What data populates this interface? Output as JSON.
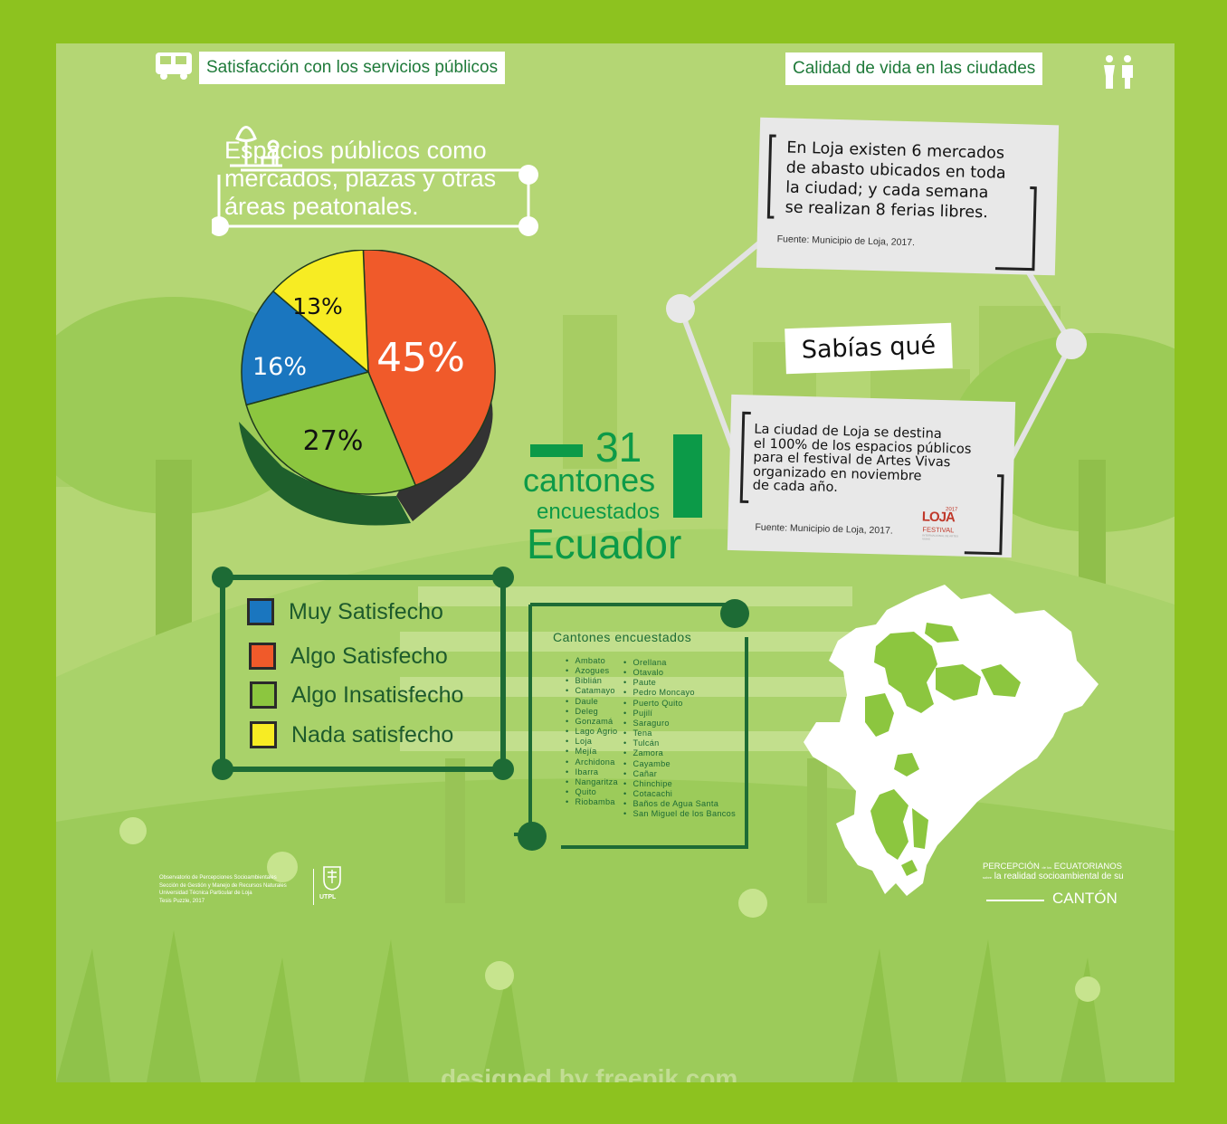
{
  "headers": {
    "left": "Satisfacción con los servicios públicos",
    "right": "Calidad de vida en las ciudades"
  },
  "question": {
    "text": "Espacios públicos como mercados, plazas y otras áreas peatonales."
  },
  "chart_data": {
    "type": "pie",
    "categories": [
      "Algo Satisfecho",
      "Algo Insatisfecho",
      "Muy Satisfecho",
      "Nada satisfecho"
    ],
    "values": [
      45,
      27,
      16,
      13
    ],
    "labels": [
      "45%",
      "27%",
      "16%",
      "13%"
    ],
    "colors": [
      "#f05a2a",
      "#8cc63f",
      "#1a76bf",
      "#f7ec23"
    ]
  },
  "legend": {
    "items": [
      {
        "label": "Muy Satisfecho",
        "color": "#1a76bf"
      },
      {
        "label": "Algo Satisfecho",
        "color": "#f05a2a"
      },
      {
        "label": "Algo Insatisfecho",
        "color": "#8cc63f"
      },
      {
        "label": "Nada satisfecho",
        "color": "#f7ec23"
      }
    ]
  },
  "stats": {
    "count": "31",
    "line1": "cantones",
    "line2": "encuestados",
    "country": "Ecuador"
  },
  "cantons": {
    "title": "Cantones encuestados",
    "col1": [
      "Ambato",
      "Azogues",
      "Biblián",
      "Catamayo",
      "Daule",
      "Deleg",
      "Gonzamá",
      "Lago Agrio",
      "Loja",
      "Mejía",
      "Archidona",
      "Ibarra",
      "Nangaritza",
      "Quito",
      "Riobamba"
    ],
    "col2": [
      "Orellana",
      "Otavalo",
      "Paute",
      "Pedro Moncayo",
      "Puerto Quito",
      "Pujilí",
      "Saraguro",
      "Tena",
      "Tulcán",
      "Zamora",
      "Cayambe",
      "Cañar",
      "Chinchipe",
      "Cotacachi",
      "Baños de Agua Santa",
      "San Miguel de los Bancos"
    ]
  },
  "facts": {
    "title": "Sabías qué",
    "fact1": {
      "lines": [
        "En Loja existen 6 mercados",
        "de abasto ubicados en toda",
        "la ciudad; y cada semana",
        "se realizan 8 ferias libres."
      ],
      "source": "Fuente: Municipio de Loja, 2017."
    },
    "fact2": {
      "lines": [
        "La ciudad de Loja se destina",
        "el 100% de los espacios públicos",
        "para el festival de Artes Vivas",
        "organizado en noviembre",
        "de cada año."
      ],
      "source": "Fuente: Municipio de Loja, 2017.",
      "logo_year": "2017",
      "logo_name": "LOJA",
      "logo_festival": "FESTIVAL",
      "logo_sub": "INTERNACIONAL DE ARTES VIVAS"
    }
  },
  "footer": {
    "credits": [
      "Observatorio de Percepciones Socioambientales",
      "Sección de Gestión y Manejo de Recursos Naturales",
      "Universidad Técnica Particular de Loja",
      "Tesis Puzzle, 2017"
    ],
    "utpl": "UTPL",
    "brand1a": "PERCEPCIÓN",
    "brand1b": "de los",
    "brand1c": "ECUATORIANOS",
    "brand2a": "sobre",
    "brand2b": "la realidad socioambiental de su",
    "brand3": "CANTÓN",
    "watermark": "designed by freepik.com"
  },
  "colors": {
    "frame": "#8dc21f",
    "dark_green": "#1d6b35",
    "accent_green": "#0c9a48"
  }
}
